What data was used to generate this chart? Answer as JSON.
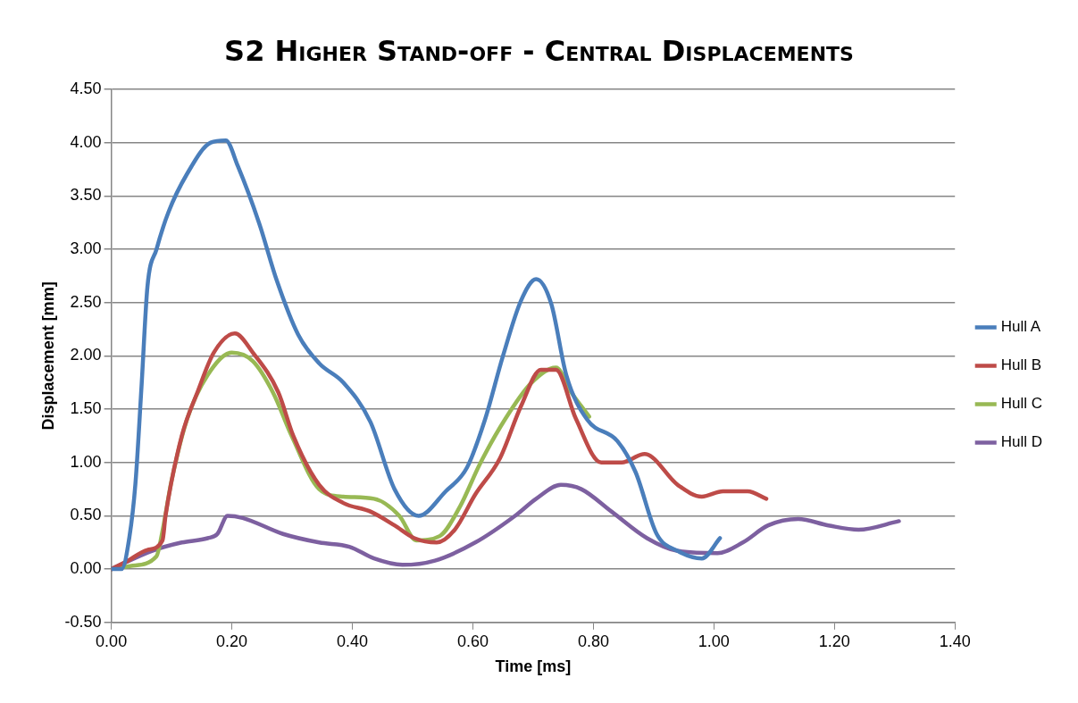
{
  "chart_data": {
    "type": "line",
    "title": "S2 Higher Stand-off - Central Displacements",
    "xlabel": "Time [ms]",
    "ylabel": "Displacement [mm]",
    "xlim": [
      0,
      1.4
    ],
    "ylim": [
      -0.5,
      4.5
    ],
    "xticks": [
      {
        "value": 0,
        "label": "0.00"
      },
      {
        "value": 0.2,
        "label": "0.20"
      },
      {
        "value": 0.4,
        "label": "0.40"
      },
      {
        "value": 0.6,
        "label": "0.60"
      },
      {
        "value": 0.8,
        "label": "0.80"
      },
      {
        "value": 1,
        "label": "1.00"
      },
      {
        "value": 1.2,
        "label": "1.20"
      },
      {
        "value": 1.4,
        "label": "1.40"
      }
    ],
    "yticks": [
      {
        "value": -0.5,
        "label": "-0.50"
      },
      {
        "value": 0,
        "label": "0.00"
      },
      {
        "value": 0.5,
        "label": "0.50"
      },
      {
        "value": 1,
        "label": "1.00"
      },
      {
        "value": 1.5,
        "label": "1.50"
      },
      {
        "value": 2,
        "label": "2.00"
      },
      {
        "value": 2.5,
        "label": "2.50"
      },
      {
        "value": 3,
        "label": "3.00"
      },
      {
        "value": 3.5,
        "label": "3.50"
      },
      {
        "value": 4,
        "label": "4.00"
      },
      {
        "value": 4.5,
        "label": "4.50"
      }
    ],
    "grid": "y",
    "legend": "right",
    "series": [
      {
        "name": "Hull A",
        "color": "#4a7ebb",
        "x": [
          0,
          0.017,
          0.03,
          0.04,
          0.05,
          0.06,
          0.075,
          0.095,
          0.125,
          0.165,
          0.19,
          0.21,
          0.245,
          0.275,
          0.31,
          0.345,
          0.385,
          0.43,
          0.47,
          0.51,
          0.555,
          0.59,
          0.62,
          0.65,
          0.68,
          0.705,
          0.73,
          0.755,
          0.79,
          0.84,
          0.87,
          0.905,
          0.94,
          0.98,
          1.01
        ],
        "values": [
          0,
          0,
          0.3,
          0.8,
          1.7,
          2.65,
          3.0,
          3.35,
          3.7,
          4.0,
          4.02,
          3.78,
          3.25,
          2.7,
          2.2,
          1.93,
          1.75,
          1.38,
          0.75,
          0.5,
          0.73,
          0.95,
          1.4,
          2.0,
          2.52,
          2.72,
          2.49,
          1.82,
          1.4,
          1.2,
          0.91,
          0.33,
          0.17,
          0.1,
          0.29
        ]
      },
      {
        "name": "Hull B",
        "color": "#be4b48",
        "x": [
          0,
          0.025,
          0.06,
          0.085,
          0.09,
          0.117,
          0.143,
          0.17,
          0.205,
          0.235,
          0.277,
          0.302,
          0.345,
          0.385,
          0.43,
          0.47,
          0.503,
          0.54,
          0.57,
          0.604,
          0.645,
          0.68,
          0.713,
          0.738,
          0.771,
          0.813,
          0.847,
          0.885,
          0.94,
          0.98,
          1.015,
          1.056,
          1.087
        ],
        "values": [
          0,
          0.07,
          0.18,
          0.27,
          0.5,
          1.25,
          1.66,
          2.03,
          2.21,
          2.03,
          1.66,
          1.25,
          0.79,
          0.62,
          0.54,
          0.41,
          0.29,
          0.25,
          0.37,
          0.7,
          1.04,
          1.53,
          1.87,
          1.87,
          1.41,
          1.0,
          1.0,
          1.08,
          0.79,
          0.68,
          0.73,
          0.73,
          0.66
        ]
      },
      {
        "name": "Hull C",
        "color": "#98b954",
        "x": [
          0,
          0.033,
          0.075,
          0.084,
          0.1,
          0.126,
          0.16,
          0.2,
          0.235,
          0.268,
          0.3,
          0.345,
          0.385,
          0.436,
          0.478,
          0.506,
          0.545,
          0.578,
          0.612,
          0.654,
          0.696,
          0.738,
          0.763,
          0.793
        ],
        "values": [
          0,
          0.03,
          0.12,
          0.33,
          0.83,
          1.41,
          1.82,
          2.03,
          1.95,
          1.66,
          1.24,
          0.75,
          0.68,
          0.66,
          0.5,
          0.27,
          0.31,
          0.58,
          0.99,
          1.41,
          1.74,
          1.89,
          1.66,
          1.43
        ]
      },
      {
        "name": "Hull D",
        "color": "#7d60a0",
        "x": [
          0,
          0.067,
          0.117,
          0.16,
          0.176,
          0.193,
          0.218,
          0.285,
          0.345,
          0.395,
          0.436,
          0.483,
          0.537,
          0.604,
          0.67,
          0.705,
          0.746,
          0.78,
          0.83,
          0.889,
          0.94,
          1.006,
          1.048,
          1.09,
          1.14,
          1.19,
          1.24,
          1.307
        ],
        "values": [
          0,
          0.17,
          0.25,
          0.29,
          0.33,
          0.5,
          0.48,
          0.33,
          0.25,
          0.21,
          0.1,
          0.04,
          0.08,
          0.25,
          0.5,
          0.66,
          0.79,
          0.75,
          0.54,
          0.29,
          0.17,
          0.15,
          0.25,
          0.41,
          0.47,
          0.41,
          0.37,
          0.45
        ]
      }
    ]
  }
}
